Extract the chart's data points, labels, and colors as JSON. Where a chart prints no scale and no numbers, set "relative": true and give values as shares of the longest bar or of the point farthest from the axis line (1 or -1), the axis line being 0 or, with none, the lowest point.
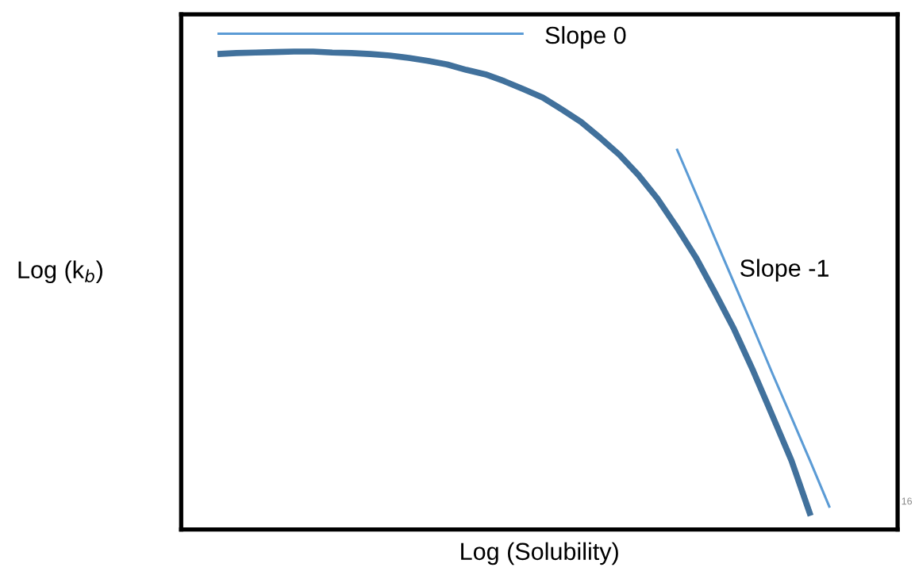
{
  "chart_data": {
    "type": "line",
    "relative": true,
    "xlabel": "Log (Solubility)",
    "ylabel": "Log (k$_{b}$)",
    "legend": false,
    "marker": "none",
    "line_style": "solid",
    "categories": [
      null,
      null,
      null,
      null,
      null,
      null,
      null,
      null,
      null,
      null,
      null,
      null,
      null,
      null,
      null,
      null,
      null,
      null,
      null,
      null,
      null,
      null,
      null,
      null,
      null,
      null,
      null,
      null,
      null,
      null,
      null,
      null,
      null
    ],
    "series": [
      {
        "color": "#41719c",
        "values": [
          0.959,
          0.961,
          0.962,
          0.963,
          0.964,
          0.964,
          0.962,
          0.961,
          0.959,
          0.956,
          0.951,
          0.945,
          0.938,
          0.927,
          0.918,
          0.904,
          0.888,
          0.871,
          0.847,
          0.822,
          0.79,
          0.756,
          0.715,
          0.667,
          0.61,
          0.549,
          0.478,
          0.404,
          0.32,
          0.23,
          0.139,
          0.028,
          null
        ]
      },
      {
        "color": "#5b9bd5",
        "values": [
          1.0,
          1.0,
          1.0,
          1.0,
          1.0,
          1.0,
          1.0,
          1.0,
          1.0,
          1.0,
          1.0,
          1.0,
          1.0,
          1.0,
          1.0,
          1.0,
          1.0,
          null,
          null,
          null,
          null,
          null,
          null,
          null,
          null,
          null,
          null,
          null,
          null,
          null,
          null,
          null,
          null
        ]
      },
      {
        "color": "#5b9bd5",
        "values": [
          null,
          null,
          null,
          null,
          null,
          null,
          null,
          null,
          null,
          null,
          null,
          null,
          null,
          null,
          null,
          null,
          null,
          null,
          null,
          null,
          null,
          null,
          null,
          null,
          0.768,
          0.678,
          0.587,
          0.497,
          0.407,
          0.315,
          0.226,
          0.136,
          0.044
        ]
      }
    ],
    "annotations": [
      "Slope 0",
      "Slope -1",
      "16"
    ]
  }
}
